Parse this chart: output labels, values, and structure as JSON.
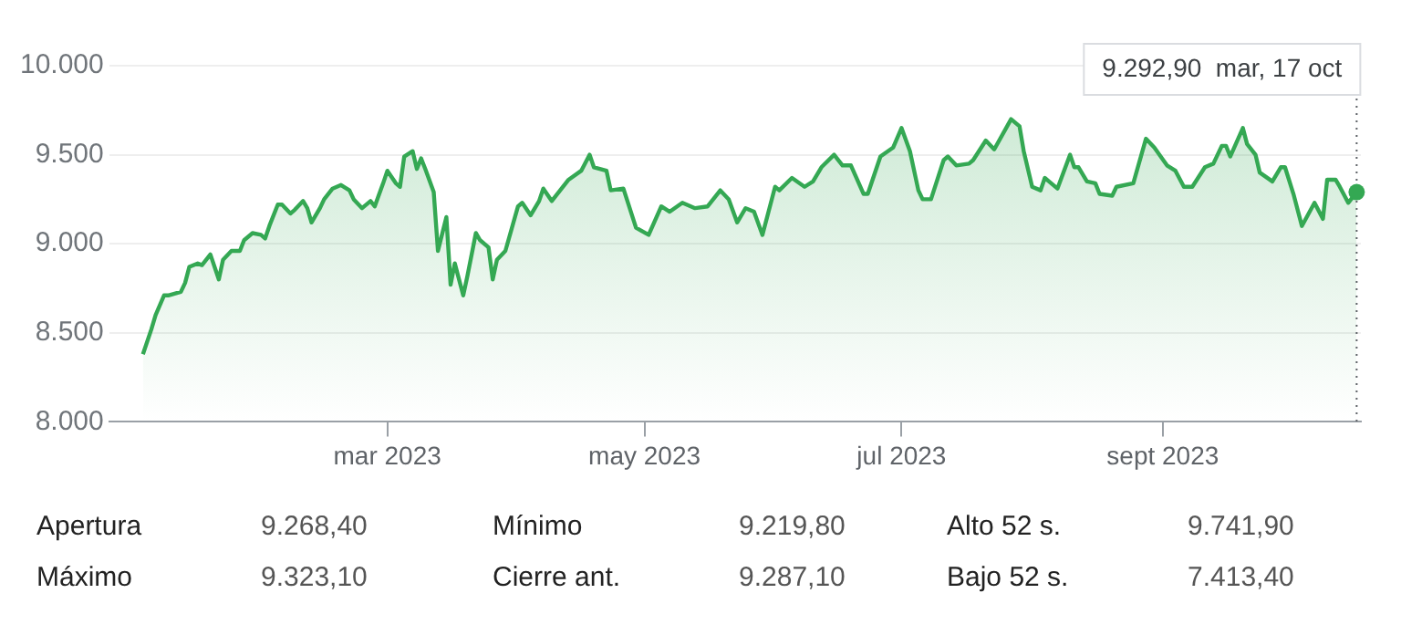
{
  "chart_data": {
    "type": "area",
    "grid": "y",
    "legend": false,
    "marker": "none",
    "line_style": "solid",
    "xlim": [
      "2022-12-25",
      "2023-10-18"
    ],
    "xticks": [
      {
        "value": "2023-03-01",
        "label": "mar 2023"
      },
      {
        "value": "2023-05-01",
        "label": "may 2023"
      },
      {
        "value": "2023-07-01",
        "label": "jul 2023"
      },
      {
        "value": "2023-09-01",
        "label": "sept 2023"
      }
    ],
    "ylim": [
      8000,
      10000
    ],
    "yticks": [
      {
        "value": 8000,
        "label": "8.000"
      },
      {
        "value": 8500,
        "label": "8.500"
      },
      {
        "value": 9000,
        "label": "9.000"
      },
      {
        "value": 9500,
        "label": "9.500"
      },
      {
        "value": 10000,
        "label": "10.000"
      }
    ],
    "x": [
      "2023-01-02",
      "2023-01-04",
      "2023-01-05",
      "2023-01-07",
      "2023-01-08",
      "2023-01-11",
      "2023-01-12",
      "2023-01-13",
      "2023-01-15",
      "2023-01-16",
      "2023-01-18",
      "2023-01-20",
      "2023-01-21",
      "2023-01-23",
      "2023-01-25",
      "2023-01-26",
      "2023-01-28",
      "2023-01-30",
      "2023-01-31",
      "2023-02-01",
      "2023-02-03",
      "2023-02-04",
      "2023-02-06",
      "2023-02-07",
      "2023-02-09",
      "2023-02-10",
      "2023-02-11",
      "2023-02-13",
      "2023-02-14",
      "2023-02-16",
      "2023-02-18",
      "2023-02-20",
      "2023-02-21",
      "2023-02-23",
      "2023-02-25",
      "2023-02-26",
      "2023-02-28",
      "2023-03-01",
      "2023-03-03",
      "2023-03-04",
      "2023-03-05",
      "2023-03-07",
      "2023-03-08",
      "2023-03-09",
      "2023-03-10",
      "2023-03-12",
      "2023-03-13",
      "2023-03-15",
      "2023-03-16",
      "2023-03-17",
      "2023-03-19",
      "2023-03-20",
      "2023-03-22",
      "2023-03-23",
      "2023-03-25",
      "2023-03-26",
      "2023-03-27",
      "2023-03-29",
      "2023-04-01",
      "2023-04-02",
      "2023-04-04",
      "2023-04-06",
      "2023-04-07",
      "2023-04-09",
      "2023-04-11",
      "2023-04-13",
      "2023-04-16",
      "2023-04-18",
      "2023-04-19",
      "2023-04-22",
      "2023-04-23",
      "2023-04-26",
      "2023-04-29",
      "2023-05-02",
      "2023-05-05",
      "2023-05-07",
      "2023-05-10",
      "2023-05-13",
      "2023-05-16",
      "2023-05-19",
      "2023-05-21",
      "2023-05-23",
      "2023-05-25",
      "2023-05-27",
      "2023-05-29",
      "2023-06-01",
      "2023-06-02",
      "2023-06-05",
      "2023-06-08",
      "2023-06-10",
      "2023-06-12",
      "2023-06-15",
      "2023-06-17",
      "2023-06-19",
      "2023-06-22",
      "2023-06-23",
      "2023-06-26",
      "2023-06-29",
      "2023-07-01",
      "2023-07-03",
      "2023-07-05",
      "2023-07-06",
      "2023-07-08",
      "2023-07-11",
      "2023-07-12",
      "2023-07-14",
      "2023-07-17",
      "2023-07-18",
      "2023-07-21",
      "2023-07-23",
      "2023-07-27",
      "2023-07-29",
      "2023-07-30",
      "2023-08-01",
      "2023-08-03",
      "2023-08-04",
      "2023-08-05",
      "2023-08-07",
      "2023-08-10",
      "2023-08-11",
      "2023-08-12",
      "2023-08-14",
      "2023-08-16",
      "2023-08-17",
      "2023-08-20",
      "2023-08-21",
      "2023-08-25",
      "2023-08-28",
      "2023-08-30",
      "2023-09-02",
      "2023-09-04",
      "2023-09-06",
      "2023-09-08",
      "2023-09-11",
      "2023-09-13",
      "2023-09-15",
      "2023-09-16",
      "2023-09-17",
      "2023-09-20",
      "2023-09-21",
      "2023-09-23",
      "2023-09-24",
      "2023-09-27",
      "2023-09-29",
      "2023-09-30",
      "2023-10-02",
      "2023-10-04",
      "2023-10-07",
      "2023-10-09",
      "2023-10-10",
      "2023-10-12",
      "2023-10-13",
      "2023-10-15",
      "2023-10-17"
    ],
    "series": [
      {
        "color": "#34a853",
        "values": [
          8380,
          8520,
          8600,
          8710,
          8710,
          8730,
          8780,
          8870,
          8890,
          8880,
          8940,
          8800,
          8910,
          8960,
          8960,
          9020,
          9060,
          9050,
          9030,
          9100,
          9220,
          9220,
          9170,
          9190,
          9240,
          9200,
          9120,
          9200,
          9250,
          9310,
          9330,
          9300,
          9250,
          9200,
          9240,
          9210,
          9340,
          9410,
          9340,
          9320,
          9490,
          9520,
          9420,
          9480,
          9420,
          9290,
          8960,
          9150,
          8770,
          8890,
          8710,
          8820,
          9060,
          9020,
          8980,
          8800,
          8910,
          8960,
          9210,
          9230,
          9160,
          9240,
          9310,
          9240,
          9300,
          9360,
          9410,
          9500,
          9430,
          9410,
          9300,
          9310,
          9090,
          9050,
          9210,
          9180,
          9230,
          9200,
          9210,
          9300,
          9250,
          9120,
          9200,
          9180,
          9050,
          9320,
          9300,
          9370,
          9320,
          9350,
          9430,
          9500,
          9440,
          9440,
          9280,
          9280,
          9490,
          9540,
          9650,
          9520,
          9300,
          9250,
          9250,
          9470,
          9490,
          9440,
          9450,
          9470,
          9580,
          9530,
          9700,
          9660,
          9520,
          9320,
          9300,
          9370,
          9350,
          9310,
          9500,
          9430,
          9430,
          9350,
          9340,
          9280,
          9270,
          9320,
          9340,
          9590,
          9540,
          9440,
          9410,
          9320,
          9320,
          9430,
          9450,
          9550,
          9550,
          9490,
          9650,
          9560,
          9500,
          9400,
          9350,
          9430,
          9430,
          9280,
          9100,
          9230,
          9140,
          9360,
          9360,
          9320,
          9230,
          9290
        ]
      }
    ],
    "ref_lines": [
      {
        "axis": "x",
        "value": "2023-10-17",
        "color": "#5f6368",
        "line_style": "dotted"
      }
    ],
    "annotations": [
      "9.292,90  mar, 17 oct",
      "Apertura 9.268,40",
      "Mínimo 9.219,80",
      "Alto 52 s. 9.741,90",
      "Máximo 9.323,10",
      "Cierre ant. 9.287,10",
      "Bajo 52 s. 7.413,40"
    ]
  }
}
